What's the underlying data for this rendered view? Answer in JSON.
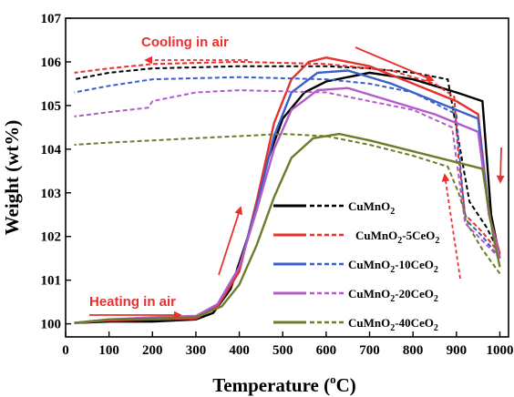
{
  "chart_data": {
    "type": "line",
    "xlabel": "Temperature (°C)",
    "xlabel_main": "Temperature (",
    "xlabel_sup": "o",
    "xlabel_end": "C)",
    "ylabel": "Weight (wt%)",
    "xlim": [
      0,
      1020
    ],
    "ylim": [
      99.7,
      107
    ],
    "x_ticks": [
      "0",
      "100",
      "200",
      "300",
      "400",
      "500",
      "600",
      "700",
      "800",
      "900",
      "1000"
    ],
    "y_ticks": [
      "100",
      "101",
      "102",
      "103",
      "104",
      "105",
      "106",
      "107"
    ],
    "annotations": [
      {
        "text": "Cooling in air",
        "color": "#e8312f"
      },
      {
        "text": "Heating in air",
        "color": "#e8312f"
      }
    ],
    "series": [
      {
        "name": "CuMnO2",
        "label_main": "CuMnO",
        "label_sub": "2",
        "label_tail": "",
        "color": "#000000",
        "heating": [
          [
            20,
            100.02
          ],
          [
            100,
            100.05
          ],
          [
            200,
            100.05
          ],
          [
            300,
            100.1
          ],
          [
            340,
            100.25
          ],
          [
            380,
            100.8
          ],
          [
            420,
            102.0
          ],
          [
            460,
            103.6
          ],
          [
            500,
            104.7
          ],
          [
            550,
            105.3
          ],
          [
            600,
            105.55
          ],
          [
            700,
            105.75
          ],
          [
            800,
            105.6
          ],
          [
            900,
            105.3
          ],
          [
            960,
            105.1
          ],
          [
            980,
            102.5
          ],
          [
            1000,
            101.5
          ]
        ],
        "cooling": [
          [
            1000,
            101.6
          ],
          [
            970,
            102.2
          ],
          [
            930,
            102.8
          ],
          [
            905,
            104.2
          ],
          [
            880,
            105.6
          ],
          [
            800,
            105.75
          ],
          [
            700,
            105.85
          ],
          [
            600,
            105.9
          ],
          [
            400,
            105.9
          ],
          [
            200,
            105.85
          ],
          [
            100,
            105.75
          ],
          [
            20,
            105.6
          ]
        ]
      },
      {
        "name": "CuMnO2-5CeO2",
        "label_main": "CuMnO",
        "label_sub": "2",
        "label_tail": "-5CeO",
        "label_tail_sub": "2",
        "color": "#e8312f",
        "heating": [
          [
            20,
            100.02
          ],
          [
            100,
            100.08
          ],
          [
            200,
            100.1
          ],
          [
            300,
            100.12
          ],
          [
            350,
            100.4
          ],
          [
            400,
            101.2
          ],
          [
            440,
            102.8
          ],
          [
            480,
            104.6
          ],
          [
            520,
            105.6
          ],
          [
            560,
            106.0
          ],
          [
            600,
            106.1
          ],
          [
            700,
            105.9
          ],
          [
            800,
            105.5
          ],
          [
            900,
            105.1
          ],
          [
            950,
            104.8
          ],
          [
            975,
            102.5
          ],
          [
            1000,
            101.6
          ]
        ],
        "cooling": [
          [
            1000,
            101.6
          ],
          [
            960,
            102.1
          ],
          [
            920,
            102.5
          ],
          [
            905,
            103.8
          ],
          [
            895,
            105.2
          ],
          [
            850,
            105.5
          ],
          [
            750,
            105.8
          ],
          [
            600,
            105.95
          ],
          [
            400,
            106.0
          ],
          [
            200,
            105.95
          ],
          [
            100,
            105.85
          ],
          [
            20,
            105.75
          ]
        ]
      },
      {
        "name": "CuMnO2-10CeO2",
        "label_main": "CuMnO",
        "label_sub": "2",
        "label_tail": "-10CeO",
        "label_tail_sub": "2",
        "color": "#3a5fc8",
        "heating": [
          [
            20,
            100.02
          ],
          [
            100,
            100.1
          ],
          [
            200,
            100.12
          ],
          [
            300,
            100.15
          ],
          [
            350,
            100.45
          ],
          [
            400,
            101.3
          ],
          [
            440,
            102.7
          ],
          [
            480,
            104.3
          ],
          [
            520,
            105.3
          ],
          [
            580,
            105.75
          ],
          [
            650,
            105.8
          ],
          [
            750,
            105.5
          ],
          [
            850,
            105.1
          ],
          [
            950,
            104.7
          ],
          [
            975,
            102.5
          ],
          [
            1000,
            101.5
          ]
        ],
        "cooling": [
          [
            1000,
            101.5
          ],
          [
            960,
            102.0
          ],
          [
            920,
            102.4
          ],
          [
            910,
            103.5
          ],
          [
            900,
            104.8
          ],
          [
            800,
            105.3
          ],
          [
            700,
            105.5
          ],
          [
            600,
            105.6
          ],
          [
            400,
            105.65
          ],
          [
            200,
            105.6
          ],
          [
            100,
            105.45
          ],
          [
            20,
            105.3
          ]
        ]
      },
      {
        "name": "CuMnO2-20CeO2",
        "label_main": "CuMnO",
        "label_sub": "2",
        "label_tail": "-20CeO",
        "label_tail_sub": "2",
        "color": "#b35cc8",
        "heating": [
          [
            20,
            100.02
          ],
          [
            100,
            100.1
          ],
          [
            200,
            100.15
          ],
          [
            300,
            100.18
          ],
          [
            350,
            100.45
          ],
          [
            400,
            101.3
          ],
          [
            440,
            102.6
          ],
          [
            480,
            104.0
          ],
          [
            520,
            104.9
          ],
          [
            580,
            105.35
          ],
          [
            650,
            105.4
          ],
          [
            750,
            105.1
          ],
          [
            850,
            104.8
          ],
          [
            950,
            104.4
          ],
          [
            975,
            102.5
          ],
          [
            1000,
            101.5
          ]
        ],
        "cooling": [
          [
            1000,
            101.5
          ],
          [
            960,
            101.9
          ],
          [
            920,
            102.3
          ],
          [
            905,
            103.4
          ],
          [
            890,
            104.5
          ],
          [
            800,
            104.9
          ],
          [
            700,
            105.1
          ],
          [
            600,
            105.3
          ],
          [
            400,
            105.35
          ],
          [
            300,
            105.3
          ],
          [
            200,
            105.1
          ],
          [
            190,
            104.95
          ],
          [
            100,
            104.85
          ],
          [
            20,
            104.75
          ]
        ]
      },
      {
        "name": "CuMnO2-40CeO2",
        "label_main": "CuMnO",
        "label_sub": "2",
        "label_tail": "-40CeO",
        "label_tail_sub": "2",
        "color": "#6b7d2a",
        "heating": [
          [
            20,
            100.02
          ],
          [
            100,
            100.1
          ],
          [
            200,
            100.12
          ],
          [
            300,
            100.15
          ],
          [
            360,
            100.4
          ],
          [
            400,
            100.9
          ],
          [
            440,
            101.8
          ],
          [
            480,
            102.9
          ],
          [
            520,
            103.8
          ],
          [
            570,
            104.25
          ],
          [
            630,
            104.35
          ],
          [
            700,
            104.2
          ],
          [
            800,
            103.95
          ],
          [
            900,
            103.7
          ],
          [
            960,
            103.55
          ],
          [
            985,
            102.0
          ],
          [
            1000,
            101.3
          ]
        ],
        "cooling": [
          [
            1000,
            101.15
          ],
          [
            960,
            101.7
          ],
          [
            930,
            102.2
          ],
          [
            905,
            103.0
          ],
          [
            880,
            103.6
          ],
          [
            800,
            103.85
          ],
          [
            700,
            104.1
          ],
          [
            600,
            104.3
          ],
          [
            500,
            104.35
          ],
          [
            400,
            104.3
          ],
          [
            300,
            104.25
          ],
          [
            200,
            104.2
          ],
          [
            100,
            104.15
          ],
          [
            20,
            104.1
          ]
        ]
      }
    ]
  }
}
